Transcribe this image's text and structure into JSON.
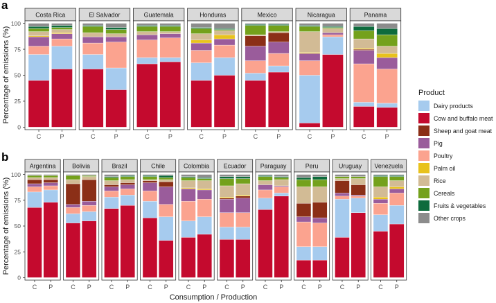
{
  "chart_data": {
    "type": "bar",
    "stacked": true,
    "legend": {
      "title": "Product",
      "placement": "right",
      "entries": [
        {
          "name": "Dairy products",
          "color": "#a6cbee"
        },
        {
          "name": "Cow and buffalo meat",
          "color": "#c40a2e"
        },
        {
          "name": "Sheep and goat meat",
          "color": "#8b2f17"
        },
        {
          "name": "Pig",
          "color": "#9a5c9b"
        },
        {
          "name": "Poultry",
          "color": "#fba38f"
        },
        {
          "name": "Palm oil",
          "color": "#e8c21d"
        },
        {
          "name": "Rice",
          "color": "#d2bb95"
        },
        {
          "name": "Cereals",
          "color": "#74a11c"
        },
        {
          "name": "Fruits & vegetables",
          "color": "#0e6b3d"
        },
        {
          "name": "Other crops",
          "color": "#8c8c8c"
        }
      ]
    },
    "stack_order": [
      "Cow and buffalo meat",
      "Dairy products",
      "Poultry",
      "Pig",
      "Sheep and goat meat",
      "Palm oil",
      "Rice",
      "Cereals",
      "Fruits & vegetables",
      "Other crops"
    ],
    "ylabel": "Percentage of emissions (%)",
    "xlabel": "Consumption / Production",
    "yticks": [
      0,
      25,
      50,
      75,
      100
    ],
    "ylim": [
      0,
      100
    ],
    "bar_categories": [
      "C",
      "P"
    ],
    "panels": [
      {
        "label": "a",
        "facets": [
          {
            "name": "Costa Rica",
            "bars": [
              {
                "Cow and buffalo meat": 45,
                "Dairy products": 25,
                "Poultry": 8,
                "Pig": 9,
                "Sheep and goat meat": 0,
                "Palm oil": 1,
                "Rice": 4,
                "Cereals": 3,
                "Fruits & vegetables": 2,
                "Other crops": 3
              },
              {
                "Cow and buffalo meat": 56,
                "Dairy products": 22,
                "Poultry": 7,
                "Pig": 5,
                "Sheep and goat meat": 0,
                "Palm oil": 1,
                "Rice": 3,
                "Cereals": 2,
                "Fruits & vegetables": 2,
                "Other crops": 2
              }
            ]
          },
          {
            "name": "El Salvador",
            "bars": [
              {
                "Cow and buffalo meat": 56,
                "Dairy products": 14,
                "Poultry": 11,
                "Pig": 6,
                "Sheep and goat meat": 0,
                "Palm oil": 0,
                "Rice": 4,
                "Cereals": 6,
                "Fruits & vegetables": 1,
                "Other crops": 2
              },
              {
                "Cow and buffalo meat": 36,
                "Dairy products": 21,
                "Poultry": 25,
                "Pig": 5,
                "Sheep and goat meat": 0,
                "Palm oil": 0,
                "Rice": 3,
                "Cereals": 4,
                "Fruits & vegetables": 2,
                "Other crops": 4
              }
            ]
          },
          {
            "name": "Guatemala",
            "bars": [
              {
                "Cow and buffalo meat": 61,
                "Dairy products": 6,
                "Poultry": 17,
                "Pig": 5,
                "Sheep and goat meat": 0,
                "Palm oil": 0,
                "Rice": 3,
                "Cereals": 5,
                "Fruits & vegetables": 1,
                "Other crops": 2
              },
              {
                "Cow and buffalo meat": 63,
                "Dairy products": 4,
                "Poultry": 19,
                "Pig": 4,
                "Sheep and goat meat": 0,
                "Palm oil": 0,
                "Rice": 2,
                "Cereals": 5,
                "Fruits & vegetables": 1,
                "Other crops": 2
              }
            ]
          },
          {
            "name": "Honduras",
            "bars": [
              {
                "Cow and buffalo meat": 45,
                "Dairy products": 17,
                "Poultry": 12,
                "Pig": 7,
                "Sheep and goat meat": 0,
                "Palm oil": 3,
                "Rice": 6,
                "Cereals": 5,
                "Fruits & vegetables": 1,
                "Other crops": 4
              },
              {
                "Cow and buffalo meat": 50,
                "Dairy products": 17,
                "Poultry": 12,
                "Pig": 6,
                "Sheep and goat meat": 0,
                "Palm oil": 4,
                "Rice": 4,
                "Cereals": 1,
                "Fruits & vegetables": 1,
                "Other crops": 5
              }
            ]
          },
          {
            "name": "Mexico",
            "bars": [
              {
                "Cow and buffalo meat": 45,
                "Dairy products": 7,
                "Poultry": 12,
                "Pig": 14,
                "Sheep and goat meat": 10,
                "Palm oil": 0,
                "Rice": 1,
                "Cereals": 9,
                "Fruits & vegetables": 1,
                "Other crops": 1
              },
              {
                "Cow and buffalo meat": 53,
                "Dairy products": 6,
                "Poultry": 12,
                "Pig": 11,
                "Sheep and goat meat": 9,
                "Palm oil": 0,
                "Rice": 1,
                "Cereals": 6,
                "Fruits & vegetables": 1,
                "Other crops": 1
              }
            ]
          },
          {
            "name": "Nicaragua",
            "bars": [
              {
                "Cow and buffalo meat": 4,
                "Dairy products": 46,
                "Poultry": 14,
                "Pig": 7,
                "Sheep and goat meat": 0,
                "Palm oil": 1,
                "Rice": 20,
                "Cereals": 5,
                "Fruits & vegetables": 1,
                "Other crops": 2
              },
              {
                "Cow and buffalo meat": 70,
                "Dairy products": 17,
                "Poultry": 2,
                "Pig": 2,
                "Sheep and goat meat": 0,
                "Palm oil": 0,
                "Rice": 4,
                "Cereals": 1,
                "Fruits & vegetables": 1,
                "Other crops": 3
              }
            ]
          },
          {
            "name": "Panama",
            "bars": [
              {
                "Cow and buffalo meat": 20,
                "Dairy products": 4,
                "Poultry": 37,
                "Pig": 13,
                "Sheep and goat meat": 1,
                "Palm oil": 1,
                "Rice": 9,
                "Cereals": 8,
                "Fruits & vegetables": 4,
                "Other crops": 3
              },
              {
                "Cow and buffalo meat": 19,
                "Dairy products": 4,
                "Poultry": 33,
                "Pig": 11,
                "Sheep and goat meat": 0,
                "Palm oil": 4,
                "Rice": 7,
                "Cereals": 11,
                "Fruits & vegetables": 6,
                "Other crops": 5
              }
            ]
          }
        ]
      },
      {
        "label": "b",
        "facets": [
          {
            "name": "Argentina",
            "bars": [
              {
                "Cow and buffalo meat": 68,
                "Dairy products": 15,
                "Poultry": 5,
                "Pig": 3,
                "Sheep and goat meat": 4,
                "Palm oil": 0,
                "Rice": 2,
                "Cereals": 2,
                "Fruits & vegetables": 0,
                "Other crops": 1
              },
              {
                "Cow and buffalo meat": 73,
                "Dairy products": 12,
                "Poultry": 4,
                "Pig": 3,
                "Sheep and goat meat": 3,
                "Palm oil": 0,
                "Rice": 2,
                "Cereals": 2,
                "Fruits & vegetables": 0,
                "Other crops": 1
              }
            ]
          },
          {
            "name": "Bolivia",
            "bars": [
              {
                "Cow and buffalo meat": 53,
                "Dairy products": 9,
                "Poultry": 6,
                "Pig": 3,
                "Sheep and goat meat": 20,
                "Palm oil": 0,
                "Rice": 4,
                "Cereals": 4,
                "Fruits & vegetables": 0,
                "Other crops": 1
              },
              {
                "Cow and buffalo meat": 55,
                "Dairy products": 9,
                "Poultry": 6,
                "Pig": 4,
                "Sheep and goat meat": 21,
                "Palm oil": 0,
                "Rice": 3,
                "Cereals": 1,
                "Fruits & vegetables": 0,
                "Other crops": 1
              }
            ]
          },
          {
            "name": "Brazil",
            "bars": [
              {
                "Cow and buffalo meat": 67,
                "Dairy products": 11,
                "Poultry": 6,
                "Pig": 4,
                "Sheep and goat meat": 2,
                "Palm oil": 0,
                "Rice": 4,
                "Cereals": 3,
                "Fruits & vegetables": 1,
                "Other crops": 2
              },
              {
                "Cow and buffalo meat": 70,
                "Dairy products": 10,
                "Poultry": 6,
                "Pig": 4,
                "Sheep and goat meat": 2,
                "Palm oil": 0,
                "Rice": 3,
                "Cereals": 3,
                "Fruits & vegetables": 1,
                "Other crops": 1
              }
            ]
          },
          {
            "name": "Chile",
            "bars": [
              {
                "Cow and buffalo meat": 58,
                "Dairy products": 16,
                "Poultry": 10,
                "Pig": 8,
                "Sheep and goat meat": 2,
                "Palm oil": 0,
                "Rice": 1,
                "Cereals": 3,
                "Fruits & vegetables": 1,
                "Other crops": 1
              },
              {
                "Cow and buffalo meat": 36,
                "Dairy products": 23,
                "Poultry": 12,
                "Pig": 17,
                "Sheep and goat meat": 5,
                "Palm oil": 0,
                "Rice": 2,
                "Cereals": 2,
                "Fruits & vegetables": 2,
                "Other crops": 1
              }
            ]
          },
          {
            "name": "Colombia",
            "bars": [
              {
                "Cow and buffalo meat": 39,
                "Dairy products": 16,
                "Poultry": 19,
                "Pig": 12,
                "Sheep and goat meat": 0,
                "Palm oil": 1,
                "Rice": 7,
                "Cereals": 3,
                "Fruits & vegetables": 1,
                "Other crops": 2
              },
              {
                "Cow and buffalo meat": 42,
                "Dairy products": 17,
                "Poultry": 17,
                "Pig": 9,
                "Sheep and goat meat": 0,
                "Palm oil": 1,
                "Rice": 8,
                "Cereals": 2,
                "Fruits & vegetables": 1,
                "Other crops": 3
              }
            ]
          },
          {
            "name": "Ecuador",
            "bars": [
              {
                "Cow and buffalo meat": 37,
                "Dairy products": 12,
                "Poultry": 14,
                "Pig": 13,
                "Sheep and goat meat": 1,
                "Palm oil": 1,
                "Rice": 11,
                "Cereals": 7,
                "Fruits & vegetables": 2,
                "Other crops": 2
              },
              {
                "Cow and buffalo meat": 37,
                "Dairy products": 12,
                "Poultry": 14,
                "Pig": 14,
                "Sheep and goat meat": 2,
                "Palm oil": 1,
                "Rice": 11,
                "Cereals": 5,
                "Fruits & vegetables": 2,
                "Other crops": 2
              }
            ]
          },
          {
            "name": "Paraguay",
            "bars": [
              {
                "Cow and buffalo meat": 66,
                "Dairy products": 11,
                "Poultry": 8,
                "Pig": 5,
                "Sheep and goat meat": 0,
                "Palm oil": 0,
                "Rice": 4,
                "Cereals": 4,
                "Fruits & vegetables": 1,
                "Other crops": 1
              },
              {
                "Cow and buffalo meat": 79,
                "Dairy products": 3,
                "Poultry": 6,
                "Pig": 1,
                "Sheep and goat meat": 0,
                "Palm oil": 0,
                "Rice": 6,
                "Cereals": 2,
                "Fruits & vegetables": 1,
                "Other crops": 2
              }
            ]
          },
          {
            "name": "Peru",
            "bars": [
              {
                "Cow and buffalo meat": 17,
                "Dairy products": 13,
                "Poultry": 24,
                "Pig": 5,
                "Sheep and goat meat": 13,
                "Palm oil": 0,
                "Rice": 16,
                "Cereals": 7,
                "Fruits & vegetables": 2,
                "Other crops": 3
              },
              {
                "Cow and buffalo meat": 17,
                "Dairy products": 13,
                "Poultry": 23,
                "Pig": 5,
                "Sheep and goat meat": 15,
                "Palm oil": 0,
                "Rice": 15,
                "Cereals": 7,
                "Fruits & vegetables": 3,
                "Other crops": 2
              }
            ]
          },
          {
            "name": "Uruguay",
            "bars": [
              {
                "Cow and buffalo meat": 39,
                "Dairy products": 37,
                "Poultry": 3,
                "Pig": 3,
                "Sheep and goat meat": 12,
                "Palm oil": 0,
                "Rice": 2,
                "Cereals": 2,
                "Fruits & vegetables": 0,
                "Other crops": 2
              },
              {
                "Cow and buffalo meat": 63,
                "Dairy products": 14,
                "Poultry": 2,
                "Pig": 1,
                "Sheep and goat meat": 10,
                "Palm oil": 0,
                "Rice": 6,
                "Cereals": 2,
                "Fruits & vegetables": 0,
                "Other crops": 2
              }
            ]
          },
          {
            "name": "Venezuela",
            "bars": [
              {
                "Cow and buffalo meat": 45,
                "Dairy products": 16,
                "Poultry": 11,
                "Pig": 4,
                "Sheep and goat meat": 0,
                "Palm oil": 2,
                "Rice": 10,
                "Cereals": 10,
                "Fruits & vegetables": 1,
                "Other crops": 1
              },
              {
                "Cow and buffalo meat": 52,
                "Dairy products": 18,
                "Poultry": 12,
                "Pig": 4,
                "Sheep and goat meat": 0,
                "Palm oil": 2,
                "Rice": 6,
                "Cereals": 4,
                "Fruits & vegetables": 1,
                "Other crops": 1
              }
            ]
          }
        ]
      }
    ]
  }
}
